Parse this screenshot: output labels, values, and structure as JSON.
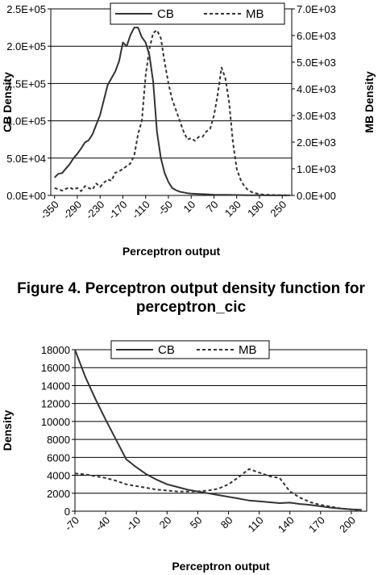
{
  "caption": {
    "line1": "Figure 4. Perceptron output density function for",
    "line2": "perceptron_cic"
  },
  "chart_data": [
    {
      "type": "line",
      "xlabel": "Perceptron output",
      "ylabel": "CB Density",
      "y2label": "MB Density",
      "x_ticks": [
        "-350",
        "-290",
        "-230",
        "-170",
        "-110",
        "-50",
        "10",
        "70",
        "130",
        "190",
        "250"
      ],
      "ylim": [
        0,
        250000
      ],
      "y_ticks": [
        "0.0E+00",
        "5.0E+04",
        "1.0E+05",
        "1.5E+05",
        "2.0E+05",
        "2.5E+05"
      ],
      "y2lim": [
        0,
        7000
      ],
      "y2_ticks": [
        "0.0E+00",
        "1.0E+03",
        "2.0E+03",
        "3.0E+03",
        "4.0E+03",
        "5.0E+03",
        "6.0E+03",
        "7.0E+03"
      ],
      "legend": "top-center",
      "grid": "horizontal",
      "series": [
        {
          "name": "CB",
          "axis": "left",
          "style": "solid",
          "x": [
            -350,
            -340,
            -330,
            -320,
            -310,
            -300,
            -290,
            -280,
            -270,
            -260,
            -250,
            -240,
            -230,
            -220,
            -210,
            -200,
            -190,
            -180,
            -170,
            -160,
            -150,
            -140,
            -130,
            -120,
            -110,
            -100,
            -90,
            -80,
            -70,
            -60,
            -50,
            -40,
            -30,
            -20,
            -10,
            0,
            10,
            30,
            50,
            70,
            100,
            130,
            160,
            190,
            220,
            250,
            270
          ],
          "values": [
            24000,
            29000,
            30000,
            36000,
            42000,
            50000,
            56000,
            63000,
            71000,
            74000,
            82000,
            95000,
            108000,
            128000,
            148000,
            157000,
            166000,
            180000,
            205000,
            200000,
            215000,
            225000,
            225000,
            212000,
            205000,
            188000,
            152000,
            85000,
            50000,
            30000,
            18000,
            10000,
            7000,
            5000,
            4000,
            3000,
            2500,
            2000,
            1500,
            1000,
            800,
            500,
            300,
            200,
            150,
            100,
            80
          ]
        },
        {
          "name": "MB",
          "axis": "right",
          "style": "dashed",
          "x": [
            -350,
            -340,
            -330,
            -320,
            -310,
            -300,
            -290,
            -280,
            -270,
            -260,
            -250,
            -240,
            -230,
            -220,
            -210,
            -200,
            -190,
            -180,
            -170,
            -160,
            -150,
            -140,
            -130,
            -120,
            -110,
            -100,
            -90,
            -80,
            -70,
            -60,
            -50,
            -40,
            -30,
            -20,
            -10,
            0,
            10,
            20,
            30,
            40,
            50,
            60,
            70,
            80,
            90,
            100,
            110,
            120,
            130,
            140,
            150,
            160,
            170,
            180,
            190,
            200,
            220,
            250,
            270
          ],
          "values": [
            280,
            230,
            180,
            250,
            300,
            220,
            280,
            160,
            350,
            280,
            220,
            450,
            320,
            480,
            600,
            550,
            850,
            900,
            1000,
            1100,
            1200,
            1500,
            2300,
            2800,
            4500,
            5500,
            6100,
            6200,
            5900,
            5000,
            4200,
            3600,
            3200,
            2800,
            2400,
            2100,
            2150,
            2050,
            2200,
            2200,
            2400,
            2500,
            3000,
            3800,
            4800,
            4400,
            3500,
            2000,
            1000,
            600,
            350,
            200,
            120,
            80,
            50,
            30,
            20,
            10,
            5
          ]
        }
      ]
    },
    {
      "type": "line",
      "xlabel": "Perceptron output",
      "ylabel": "Density",
      "x_ticks": [
        "-70",
        "-40",
        "-10",
        "20",
        "50",
        "80",
        "110",
        "140",
        "170",
        "200"
      ],
      "ylim": [
        0,
        18000
      ],
      "y_ticks": [
        "0",
        "2000",
        "4000",
        "6000",
        "8000",
        "10000",
        "12000",
        "14000",
        "16000",
        "18000"
      ],
      "legend": "top-center",
      "grid": "horizontal",
      "series": [
        {
          "name": "CB",
          "style": "solid",
          "x": [
            -70,
            -60,
            -50,
            -40,
            -30,
            -20,
            -10,
            0,
            10,
            20,
            30,
            40,
            50,
            60,
            70,
            80,
            90,
            100,
            110,
            120,
            130,
            140,
            150,
            160,
            170,
            180,
            190,
            200,
            210
          ],
          "values": [
            18000,
            15000,
            12500,
            10200,
            8000,
            5800,
            4900,
            4100,
            3500,
            3000,
            2700,
            2400,
            2200,
            2000,
            1800,
            1600,
            1400,
            1200,
            1100,
            1000,
            900,
            950,
            800,
            700,
            550,
            400,
            300,
            200,
            150
          ]
        },
        {
          "name": "MB",
          "style": "dashed",
          "x": [
            -70,
            -60,
            -50,
            -40,
            -30,
            -20,
            -10,
            0,
            10,
            20,
            30,
            40,
            50,
            60,
            70,
            80,
            90,
            100,
            110,
            120,
            130,
            140,
            150,
            160,
            170,
            180,
            190,
            200,
            210
          ],
          "values": [
            4200,
            4100,
            3900,
            3700,
            3400,
            3000,
            2800,
            2600,
            2400,
            2300,
            2200,
            2200,
            2200,
            2300,
            2500,
            3000,
            3800,
            4700,
            4300,
            3900,
            3700,
            2200,
            1500,
            1000,
            700,
            500,
            300,
            200,
            100
          ]
        }
      ]
    }
  ]
}
